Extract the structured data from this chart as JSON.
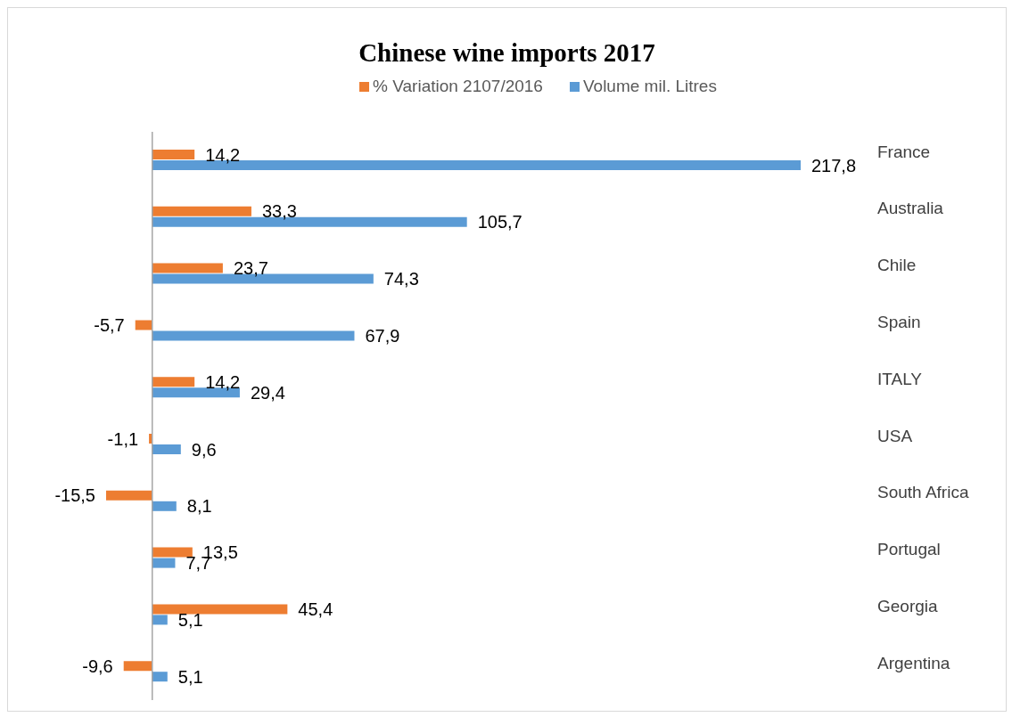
{
  "chart_data": {
    "type": "bar",
    "orientation": "horizontal",
    "title": "Chinese wine imports 2017",
    "categories": [
      "France",
      "Australia",
      "Chile",
      "Spain",
      "ITALY",
      "USA",
      "South Africa",
      "Portugal",
      "Georgia",
      "Argentina"
    ],
    "series": [
      {
        "name": "% Variation 2107/2016",
        "color": "#ed7d31",
        "values": [
          14.2,
          33.3,
          23.7,
          -5.7,
          14.2,
          -1.1,
          -15.5,
          13.5,
          45.4,
          -9.6
        ],
        "value_labels": [
          "14,2",
          "33,3",
          "23,7",
          "-5,7",
          "14,2",
          "-1,1",
          "-15,5",
          "13,5",
          "45,4",
          "-9,6"
        ]
      },
      {
        "name": "Volume mil. Litres",
        "color": "#5b9bd5",
        "values": [
          217.8,
          105.7,
          74.3,
          67.9,
          29.4,
          9.6,
          8.1,
          7.7,
          5.1,
          5.1
        ],
        "value_labels": [
          "217,8",
          "105,7",
          "74,3",
          "67,9",
          "29,4",
          "9,6",
          "8,1",
          "7,7",
          "5,1",
          "5,1"
        ]
      }
    ],
    "legend": "top"
  }
}
